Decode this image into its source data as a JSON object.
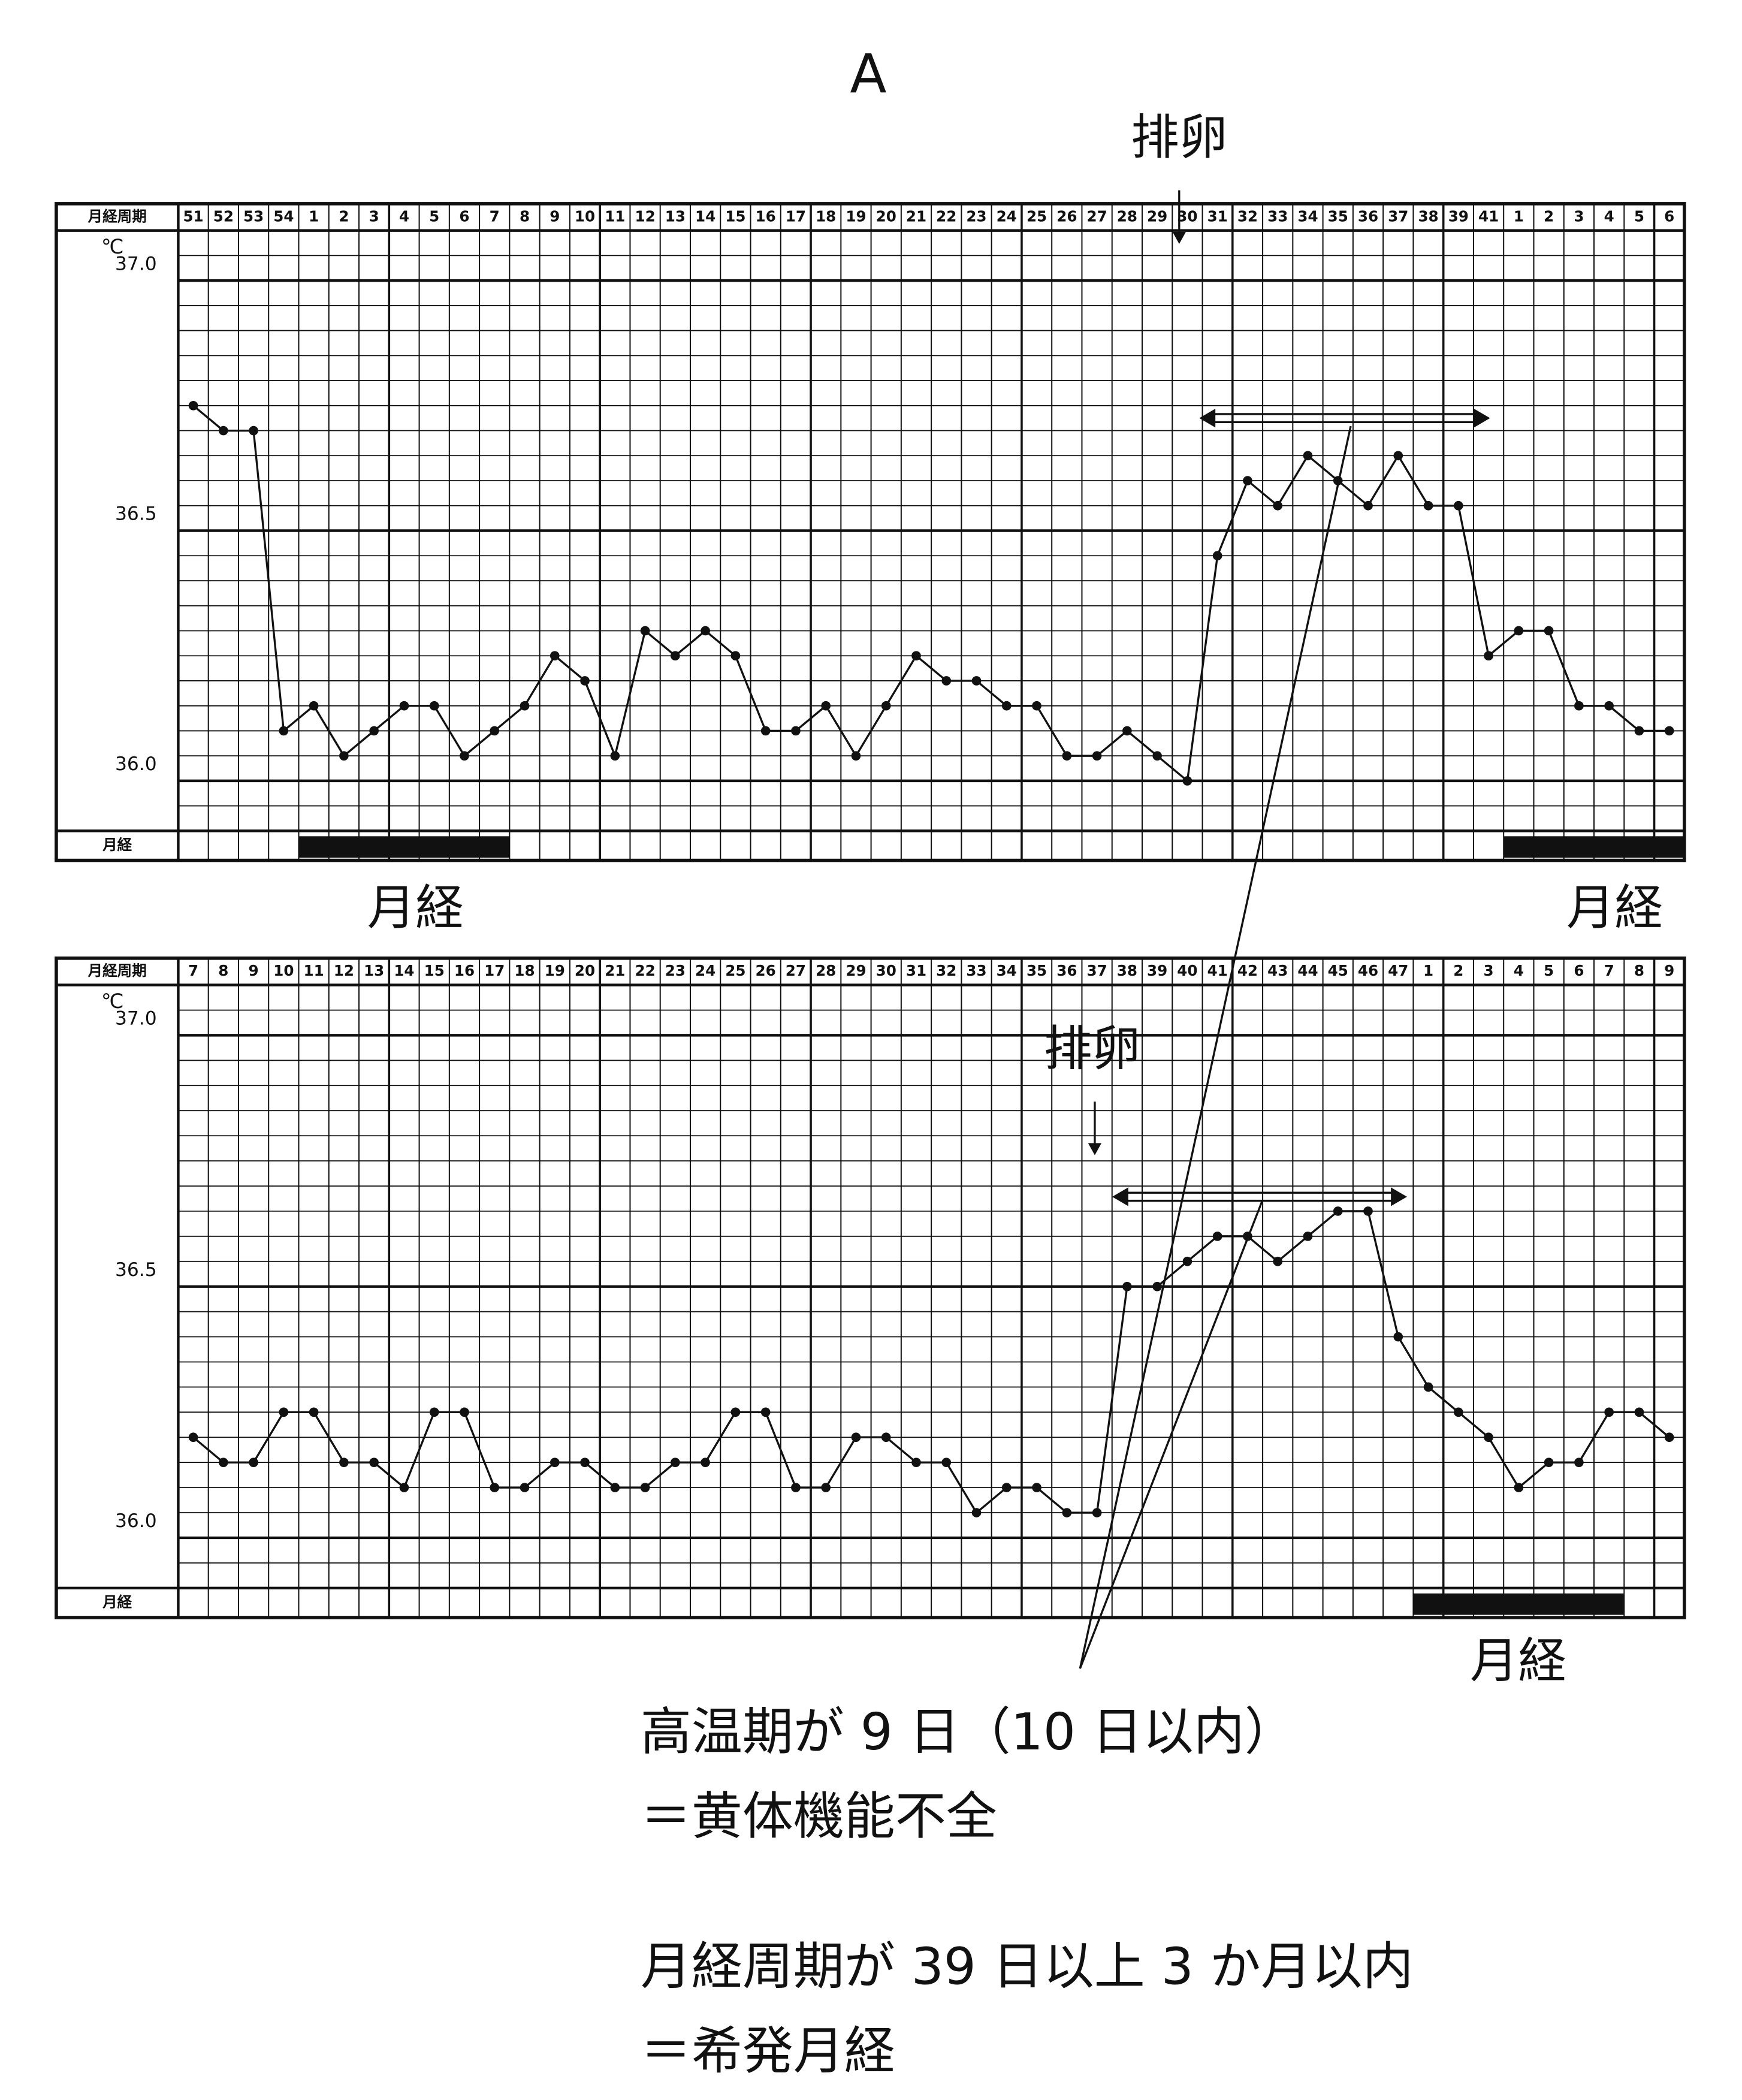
{
  "title": "A",
  "chart_data": [
    {
      "type": "line",
      "header_label": "月経周期",
      "y_unit": "℃",
      "menses_label": "月経",
      "color": "#111",
      "categories": [
        "51",
        "52",
        "53",
        "54",
        "1",
        "2",
        "3",
        "4",
        "5",
        "6",
        "7",
        "8",
        "9",
        "10",
        "11",
        "12",
        "13",
        "14",
        "15",
        "16",
        "17",
        "18",
        "19",
        "20",
        "21",
        "22",
        "23",
        "24",
        "25",
        "26",
        "27",
        "28",
        "29",
        "30",
        "31",
        "32",
        "33",
        "34",
        "35",
        "36",
        "37",
        "38",
        "39",
        "41",
        "1",
        "2",
        "3",
        "4",
        "5",
        "6"
      ],
      "values": [
        36.75,
        36.7,
        36.7,
        36.1,
        36.15,
        36.05,
        36.1,
        36.15,
        36.15,
        36.05,
        36.1,
        36.15,
        36.25,
        36.2,
        36.05,
        36.3,
        36.25,
        36.3,
        36.25,
        36.1,
        36.1,
        36.15,
        36.05,
        36.15,
        36.25,
        36.2,
        36.2,
        36.15,
        36.15,
        36.05,
        36.05,
        36.1,
        36.05,
        36.0,
        36.45,
        36.6,
        36.55,
        36.65,
        36.6,
        36.55,
        36.65,
        36.55,
        36.55,
        36.25,
        36.3,
        36.3,
        36.15,
        36.15,
        36.1,
        36.1
      ],
      "ylim": [
        35.9,
        37.1
      ],
      "yticks": [
        {
          "value": 36,
          "label": "36.0"
        },
        36.5,
        {
          "value": 37,
          "label": "37.0"
        }
      ],
      "grid": true,
      "menses": [
        [
          4,
          10
        ],
        [
          44,
          49
        ]
      ],
      "annotations": [
        "排卵",
        "月経",
        "月経"
      ]
    },
    {
      "type": "line",
      "header_label": "月経周期",
      "y_unit": "℃",
      "menses_label": "月経",
      "color": "#111",
      "categories": [
        "7",
        "8",
        "9",
        "10",
        "11",
        "12",
        "13",
        "14",
        "15",
        "16",
        "17",
        "18",
        "19",
        "20",
        "21",
        "22",
        "23",
        "24",
        "25",
        "26",
        "27",
        "28",
        "29",
        "30",
        "31",
        "32",
        "33",
        "34",
        "35",
        "36",
        "37",
        "38",
        "39",
        "40",
        "41",
        "42",
        "43",
        "44",
        "45",
        "46",
        "47",
        "1",
        "2",
        "3",
        "4",
        "5",
        "6",
        "7",
        "8",
        "9"
      ],
      "values": [
        36.2,
        36.15,
        36.15,
        36.25,
        36.25,
        36.15,
        36.15,
        36.1,
        36.25,
        36.25,
        36.1,
        36.1,
        36.15,
        36.15,
        36.1,
        36.1,
        36.15,
        36.15,
        36.25,
        36.25,
        36.1,
        36.1,
        36.2,
        36.2,
        36.15,
        36.15,
        36.05,
        36.1,
        36.1,
        36.05,
        36.05,
        36.5,
        36.5,
        36.55,
        36.6,
        36.6,
        36.55,
        36.6,
        36.65,
        36.65,
        36.4,
        36.3,
        36.25,
        36.2,
        36.1,
        36.15,
        36.15,
        36.25,
        36.25,
        36.2
      ],
      "ylim": [
        35.9,
        37.1
      ],
      "yticks": [
        {
          "value": 36,
          "label": "36.0"
        },
        36.5,
        {
          "value": 37,
          "label": "37.0"
        }
      ],
      "grid": true,
      "menses": [
        [
          41,
          47
        ]
      ],
      "annotations": [
        "排卵",
        "月経"
      ]
    }
  ],
  "notes": [
    "高温期が 9 日（10 日以内）",
    "＝黄体機能不全",
    "月経周期が 39 日以上 3 か月以内",
    "＝希発月経"
  ]
}
